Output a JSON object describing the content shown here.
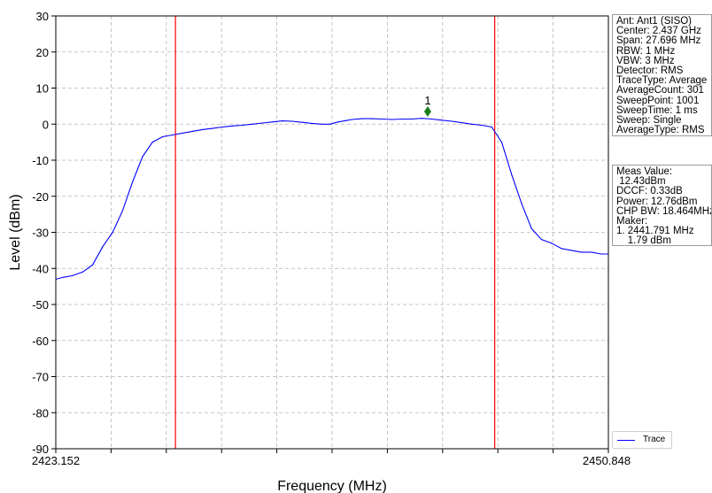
{
  "chart_data": {
    "type": "line",
    "xlabel": "Frequency (MHz)",
    "ylabel": "Level (dBm)",
    "xlim": [
      2423.152,
      2450.848
    ],
    "ylim": [
      -90,
      30
    ],
    "x_tick_labels": [
      "2423.152",
      "2450.848"
    ],
    "y_ticks": [
      30,
      20,
      10,
      0,
      -10,
      -20,
      -30,
      -40,
      -50,
      -60,
      -70,
      -80,
      -90
    ],
    "grid": true,
    "legend_position": "bottom-right",
    "series": [
      {
        "name": "Trace",
        "color": "#0000ff",
        "x": [
          2423.152,
          2423.5,
          2424.0,
          2424.5,
          2425.0,
          2425.5,
          2426.0,
          2426.5,
          2427.0,
          2427.5,
          2428.0,
          2428.5,
          2429.0,
          2429.5,
          2430.0,
          2430.5,
          2431.0,
          2431.5,
          2432.0,
          2432.5,
          2433.0,
          2433.5,
          2434.0,
          2434.5,
          2435.0,
          2435.5,
          2436.0,
          2436.5,
          2436.9,
          2437.3,
          2437.7,
          2438.0,
          2438.5,
          2439.0,
          2439.5,
          2440.0,
          2440.5,
          2441.0,
          2441.5,
          2442.0,
          2442.5,
          2443.0,
          2443.5,
          2444.0,
          2444.5,
          2445.0,
          2445.5,
          2446.0,
          2446.5,
          2447.0,
          2447.5,
          2448.0,
          2448.5,
          2449.0,
          2449.5,
          2450.0,
          2450.5,
          2450.848
        ],
        "y": [
          -43,
          -42.5,
          -42,
          -41,
          -39,
          -34,
          -30,
          -24,
          -16,
          -9,
          -5,
          -3.5,
          -3,
          -2.5,
          -2,
          -1.5,
          -1.2,
          -0.8,
          -0.5,
          -0.3,
          0,
          0.3,
          0.6,
          0.9,
          0.8,
          0.5,
          0.2,
          0,
          0,
          0.6,
          1.0,
          1.3,
          1.5,
          1.5,
          1.4,
          1.3,
          1.4,
          1.4,
          1.6,
          1.4,
          1.1,
          0.8,
          0.4,
          0,
          -0.3,
          -0.8,
          -5,
          -14,
          -22,
          -29,
          -32,
          -33,
          -34.5,
          -35,
          -35.5,
          -35.5,
          -36,
          -36
        ]
      }
    ],
    "vertical_lines": [
      {
        "x": 2429.15,
        "color": "#ff0000"
      },
      {
        "x": 2445.15,
        "color": "#ff0000"
      }
    ],
    "marker": {
      "label": "1",
      "x": 2441.791,
      "y": 3.5,
      "color": "#1a7f1a"
    }
  },
  "settings_panel": [
    "Ant: Ant1 (SISO)",
    "Center: 2.437 GHz",
    "Span: 27.696 MHz",
    "RBW: 1 MHz",
    "VBW: 3 MHz",
    "Detector: RMS",
    "TraceType: Average",
    "AverageCount: 301",
    "SweepPoint: 1001",
    "SweepTime: 1 ms",
    "Sweep: Single",
    "AverageType: RMS"
  ],
  "measurement_panel": [
    "Meas Value:",
    " 12.43dBm",
    "DCCF: 0.33dB",
    "Power: 12.76dBm",
    "CHP BW: 18.464MHz",
    "Maker:",
    "1. 2441.791 MHz",
    "    1.79 dBm"
  ],
  "legend": {
    "label": "Trace"
  }
}
